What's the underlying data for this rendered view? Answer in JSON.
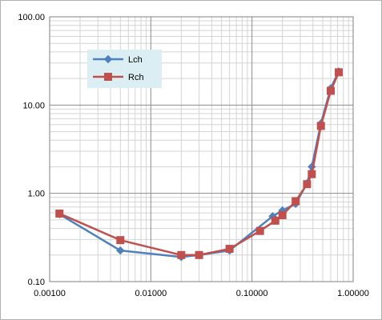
{
  "chart_data": {
    "type": "line",
    "title": "",
    "xlabel": "",
    "ylabel": "",
    "x_scale": "log",
    "y_scale": "log",
    "xlim": [
      0.001,
      1.0
    ],
    "ylim": [
      0.1,
      100
    ],
    "x_ticks": [
      "0.00100",
      "0.01000",
      "0.10000",
      "1.00000"
    ],
    "y_ticks": [
      "0.10",
      "1.00",
      "10.00",
      "100.00"
    ],
    "grid": true,
    "legend_position": "top-left",
    "series": [
      {
        "name": "Lch",
        "color": "#4F81BD",
        "marker": "diamond",
        "points": [
          [
            0.00125,
            0.58
          ],
          [
            0.005,
            0.225
          ],
          [
            0.02,
            0.19
          ],
          [
            0.03,
            0.2
          ],
          [
            0.06,
            0.225
          ],
          [
            0.16,
            0.55
          ],
          [
            0.2,
            0.64
          ],
          [
            0.27,
            0.76
          ],
          [
            0.35,
            1.3
          ],
          [
            0.39,
            2.0
          ],
          [
            0.48,
            6.2
          ],
          [
            0.6,
            15.5
          ],
          [
            0.72,
            24.0
          ]
        ]
      },
      {
        "name": "Rch",
        "color": "#C0504D",
        "marker": "square",
        "points": [
          [
            0.00125,
            0.59
          ],
          [
            0.005,
            0.295
          ],
          [
            0.02,
            0.2
          ],
          [
            0.03,
            0.2
          ],
          [
            0.06,
            0.235
          ],
          [
            0.12,
            0.375
          ],
          [
            0.17,
            0.49
          ],
          [
            0.2,
            0.565
          ],
          [
            0.27,
            0.815
          ],
          [
            0.35,
            1.27
          ],
          [
            0.39,
            1.65
          ],
          [
            0.48,
            5.8
          ],
          [
            0.6,
            14.5
          ],
          [
            0.72,
            23.5
          ]
        ]
      }
    ]
  }
}
